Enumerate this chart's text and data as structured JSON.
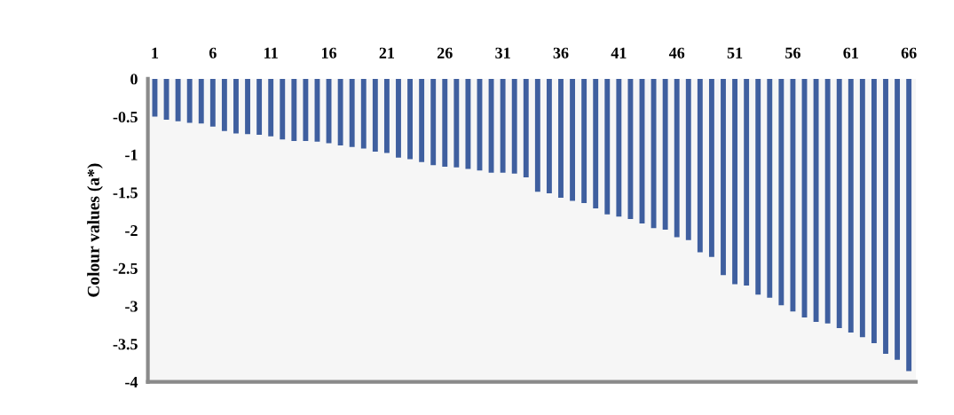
{
  "chart_data": {
    "type": "bar",
    "ylabel": "Colour values (a*)",
    "categories": [
      "1",
      null,
      null,
      null,
      null,
      "6",
      null,
      null,
      null,
      null,
      "11",
      null,
      null,
      null,
      null,
      "16",
      null,
      null,
      null,
      null,
      "21",
      null,
      null,
      null,
      null,
      "26",
      null,
      null,
      null,
      null,
      "31",
      null,
      null,
      null,
      null,
      "36",
      null,
      null,
      null,
      null,
      "41",
      null,
      null,
      null,
      null,
      "46",
      null,
      null,
      null,
      null,
      "51",
      null,
      null,
      null,
      null,
      "56",
      null,
      null,
      null,
      null,
      "61",
      null,
      null,
      null,
      null,
      "66"
    ],
    "values": [
      -0.5,
      -0.54,
      -0.56,
      -0.58,
      -0.59,
      -0.63,
      -0.69,
      -0.72,
      -0.73,
      -0.74,
      -0.76,
      -0.8,
      -0.82,
      -0.82,
      -0.83,
      -0.85,
      -0.88,
      -0.9,
      -0.92,
      -0.96,
      -0.98,
      -1.04,
      -1.06,
      -1.1,
      -1.14,
      -1.16,
      -1.17,
      -1.19,
      -1.21,
      -1.24,
      -1.24,
      -1.25,
      -1.3,
      -1.49,
      -1.51,
      -1.57,
      -1.61,
      -1.64,
      -1.71,
      -1.79,
      -1.82,
      -1.85,
      -1.91,
      -1.97,
      -1.99,
      -2.09,
      -2.13,
      -2.29,
      -2.35,
      -2.59,
      -2.71,
      -2.73,
      -2.85,
      -2.89,
      -2.99,
      -3.07,
      -3.15,
      -3.21,
      -3.23,
      -3.29,
      -3.35,
      -3.41,
      -3.49,
      -3.63,
      -3.71,
      -3.86
    ],
    "color": "#3f5f9f",
    "ylim": [
      -4,
      0
    ],
    "yticks": [
      0,
      -0.5,
      -1,
      -1.5,
      -2,
      -2.5,
      -3,
      -3.5,
      -4
    ],
    "grid": false,
    "legend": false
  }
}
